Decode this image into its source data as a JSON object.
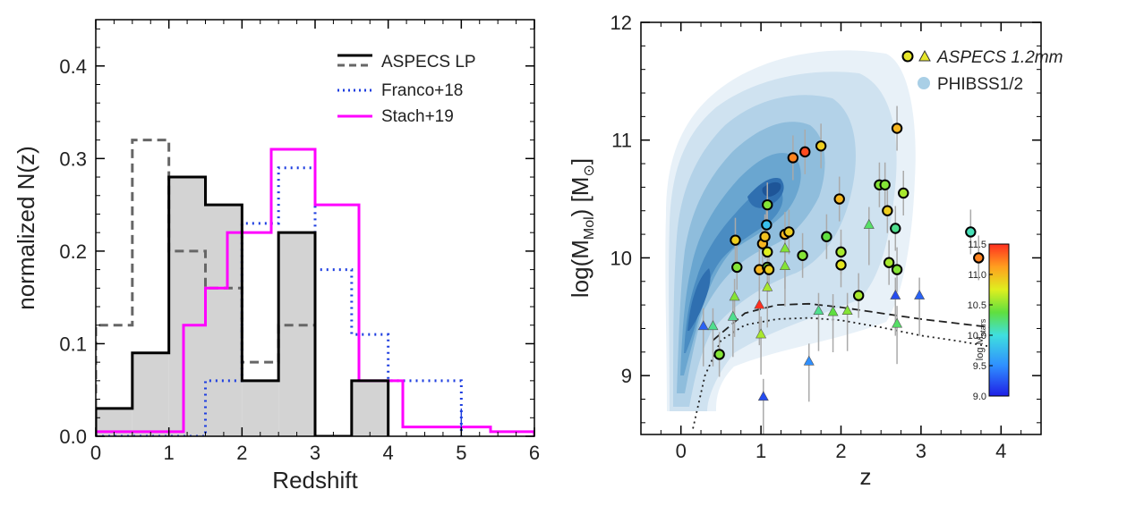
{
  "chart_data": [
    {
      "type": "histogram",
      "xlabel": "Redshift",
      "ylabel": "normalized N(z)",
      "xlim": [
        0,
        6
      ],
      "ylim": [
        0,
        0.45
      ],
      "xticks": [
        "0",
        "1",
        "2",
        "3",
        "4",
        "5",
        "6"
      ],
      "yticks": [
        "0.0",
        "0.1",
        "0.2",
        "0.3",
        "0.4"
      ],
      "legend_position": "top-right",
      "series": [
        {
          "name": "ASPECS LP",
          "style": "solid",
          "color": "#000000",
          "fill": "#d3d3d3",
          "bin_edges": [
            0,
            0.5,
            1.0,
            1.5,
            2.0,
            2.5,
            3.0,
            3.5,
            4.0
          ],
          "values": [
            0.03,
            0.09,
            0.28,
            0.25,
            0.06,
            0.22,
            0.0,
            0.06
          ]
        },
        {
          "name": "ASPECS LP (dashed)",
          "style": "dashed",
          "color": "#666666",
          "bin_edges": [
            0,
            0.5,
            1.0,
            1.5,
            2.0,
            2.5,
            3.0
          ],
          "values": [
            0.12,
            0.32,
            0.2,
            0.16,
            0.08,
            0.12
          ]
        },
        {
          "name": "Franco+18",
          "style": "dotted",
          "color": "#1f3fe0",
          "bin_edges": [
            0,
            0.5,
            1.0,
            1.5,
            2.0,
            2.5,
            3.0,
            3.5,
            4.0,
            4.5,
            5.0
          ],
          "values": [
            0.0,
            0.0,
            0.0,
            0.06,
            0.23,
            0.29,
            0.18,
            0.11,
            0.06,
            0.06
          ]
        },
        {
          "name": "Stach+19",
          "style": "solid",
          "color": "#ff00ff",
          "bin_edges": [
            0,
            1.2,
            1.5,
            1.8,
            2.1,
            2.4,
            2.7,
            3.0,
            3.6,
            4.2,
            4.8,
            5.4,
            6.0
          ],
          "values": [
            0.005,
            0.12,
            0.16,
            0.22,
            0.22,
            0.31,
            0.31,
            0.25,
            0.06,
            0.01,
            0.01,
            0.005
          ]
        }
      ],
      "legend": [
        "ASPECS LP",
        "Franco+18",
        "Stach+19"
      ]
    },
    {
      "type": "scatter",
      "xlabel": "z",
      "ylabel_main": "log(M",
      "ylabel_sub": "Mol",
      "ylabel_tail": ") [M",
      "ylabel_sun": "⊙",
      "ylabel_close": "]",
      "xlim": [
        -0.5,
        4.5
      ],
      "ylim": [
        8.5,
        12
      ],
      "xticks": [
        "0",
        "1",
        "2",
        "3",
        "4"
      ],
      "yticks": [
        "9",
        "10",
        "11",
        "12"
      ],
      "legend_position": "top-right",
      "legend": [
        {
          "label": "ASPECS 1.2mm",
          "marker": "circle+triangle",
          "italic": true
        },
        {
          "label": "PHIBSS1/2",
          "marker": "filled-circle",
          "color": "#a9cfe6"
        }
      ],
      "colorbar": {
        "label_main": "log M",
        "label_sub": "stars",
        "min": 9.0,
        "max": 11.5,
        "ticks": [
          "9.0",
          "9.5",
          "10.0",
          "10.5",
          "11.0",
          "11.5"
        ]
      },
      "contour_density_peak": {
        "z": 1.25,
        "logM": 10.7
      },
      "circles": [
        {
          "z": 0.48,
          "y": 9.18,
          "c": 10.5
        },
        {
          "z": 0.68,
          "y": 10.15,
          "c": 10.9
        },
        {
          "z": 0.7,
          "y": 9.92,
          "c": 10.5
        },
        {
          "z": 0.98,
          "y": 9.9,
          "c": 11.0
        },
        {
          "z": 1.02,
          "y": 10.12,
          "c": 11.0
        },
        {
          "z": 1.05,
          "y": 10.18,
          "c": 10.95
        },
        {
          "z": 1.07,
          "y": 10.28,
          "c": 9.8
        },
        {
          "z": 1.08,
          "y": 10.05,
          "c": 10.75
        },
        {
          "z": 1.08,
          "y": 9.92,
          "c": 10.5
        },
        {
          "z": 1.08,
          "y": 10.45,
          "c": 10.5
        },
        {
          "z": 1.1,
          "y": 9.9,
          "c": 10.9
        },
        {
          "z": 1.3,
          "y": 10.2,
          "c": 11.0
        },
        {
          "z": 1.35,
          "y": 10.22,
          "c": 10.9
        },
        {
          "z": 1.4,
          "y": 10.85,
          "c": 11.2
        },
        {
          "z": 1.55,
          "y": 10.9,
          "c": 11.4
        },
        {
          "z": 1.52,
          "y": 10.02,
          "c": 10.5
        },
        {
          "z": 1.75,
          "y": 10.95,
          "c": 10.9
        },
        {
          "z": 1.82,
          "y": 10.18,
          "c": 10.4
        },
        {
          "z": 1.98,
          "y": 10.5,
          "c": 11.0
        },
        {
          "z": 2.0,
          "y": 10.05,
          "c": 10.6
        },
        {
          "z": 2.0,
          "y": 9.94,
          "c": 10.8
        },
        {
          "z": 2.22,
          "y": 9.68,
          "c": 10.6
        },
        {
          "z": 2.48,
          "y": 10.62,
          "c": 10.5
        },
        {
          "z": 2.55,
          "y": 10.62,
          "c": 10.5
        },
        {
          "z": 2.58,
          "y": 10.4,
          "c": 10.9
        },
        {
          "z": 2.6,
          "y": 9.96,
          "c": 10.6
        },
        {
          "z": 2.68,
          "y": 10.25,
          "c": 10.2
        },
        {
          "z": 2.7,
          "y": 9.9,
          "c": 10.5
        },
        {
          "z": 2.7,
          "y": 11.1,
          "c": 11.0
        },
        {
          "z": 2.78,
          "y": 10.55,
          "c": 10.6
        },
        {
          "z": 3.62,
          "y": 10.22,
          "c": 10.1
        },
        {
          "z": 3.72,
          "y": 10.0,
          "c": 11.2
        }
      ],
      "triangles": [
        {
          "z": 0.28,
          "y": 9.42,
          "c": 9.3
        },
        {
          "z": 0.4,
          "y": 9.42,
          "c": 10.2
        },
        {
          "z": 0.65,
          "y": 9.5,
          "c": 10.2
        },
        {
          "z": 0.67,
          "y": 9.67,
          "c": 10.5
        },
        {
          "z": 0.98,
          "y": 9.6,
          "c": 11.5
        },
        {
          "z": 1.0,
          "y": 9.35,
          "c": 10.6
        },
        {
          "z": 1.03,
          "y": 8.82,
          "c": 9.2
        },
        {
          "z": 1.08,
          "y": 9.75,
          "c": 10.6
        },
        {
          "z": 1.3,
          "y": 10.08,
          "c": 10.5
        },
        {
          "z": 1.3,
          "y": 9.93,
          "c": 10.5
        },
        {
          "z": 1.6,
          "y": 9.12,
          "c": 9.5
        },
        {
          "z": 1.72,
          "y": 9.55,
          "c": 10.2
        },
        {
          "z": 1.9,
          "y": 9.54,
          "c": 10.4
        },
        {
          "z": 2.08,
          "y": 9.55,
          "c": 10.5
        },
        {
          "z": 2.35,
          "y": 10.28,
          "c": 10.3
        },
        {
          "z": 2.68,
          "y": 9.68,
          "c": 9.2
        },
        {
          "z": 2.7,
          "y": 9.44,
          "c": 10.3
        },
        {
          "z": 2.98,
          "y": 9.68,
          "c": 9.3
        }
      ],
      "curves": [
        {
          "style": "dashed",
          "description_points": [
            [
              0.4,
              9.3
            ],
            [
              0.8,
              9.53
            ],
            [
              1.2,
              9.6
            ],
            [
              1.6,
              9.61
            ],
            [
              2.0,
              9.58
            ],
            [
              2.5,
              9.53
            ],
            [
              3.0,
              9.48
            ],
            [
              3.5,
              9.44
            ],
            [
              4.0,
              9.4
            ]
          ]
        },
        {
          "style": "dotted",
          "description_points": [
            [
              0.15,
              8.55
            ],
            [
              0.3,
              9.0
            ],
            [
              0.5,
              9.3
            ],
            [
              0.8,
              9.43
            ],
            [
              1.2,
              9.48
            ],
            [
              1.6,
              9.49
            ],
            [
              2.0,
              9.47
            ],
            [
              2.5,
              9.41
            ],
            [
              3.0,
              9.34
            ],
            [
              3.5,
              9.29
            ],
            [
              4.0,
              9.23
            ]
          ]
        }
      ]
    }
  ]
}
